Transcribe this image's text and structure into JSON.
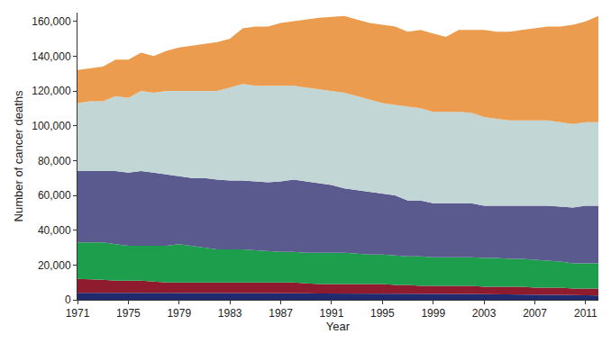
{
  "chart_data": {
    "type": "area",
    "stacked": true,
    "grid": false,
    "x_label": "Year",
    "y_label": "Number of cancer deaths",
    "x": [
      1971,
      1972,
      1973,
      1974,
      1975,
      1976,
      1977,
      1978,
      1979,
      1980,
      1981,
      1982,
      1983,
      1984,
      1985,
      1986,
      1987,
      1988,
      1989,
      1990,
      1991,
      1992,
      1993,
      1994,
      1995,
      1996,
      1997,
      1998,
      1999,
      2000,
      2001,
      2002,
      2003,
      2004,
      2005,
      2006,
      2007,
      2008,
      2009,
      2010,
      2011,
      2012
    ],
    "xlim": [
      1971,
      2012
    ],
    "xticks": [
      1971,
      1975,
      1979,
      1983,
      1987,
      1991,
      1995,
      1999,
      2003,
      2007,
      2011
    ],
    "ylim": [
      0,
      165000
    ],
    "yticks": [
      0,
      {
        "value": 20000,
        "label": "20,000"
      },
      {
        "value": 40000,
        "label": "40,000"
      },
      {
        "value": 60000,
        "label": "60,000"
      },
      {
        "value": 80000,
        "label": "80,000"
      },
      {
        "value": 100000,
        "label": "100,000"
      },
      {
        "value": 120000,
        "label": "120,000"
      },
      {
        "value": 140000,
        "label": "140,000"
      },
      {
        "value": 160000,
        "label": "160,000"
      }
    ],
    "series": [
      {
        "color": "#1f2b6e",
        "values": [
          4000,
          4000,
          4000,
          4000,
          4000,
          4000,
          4000,
          4000,
          4000,
          4000,
          4000,
          4000,
          3800,
          3800,
          3800,
          3800,
          3800,
          3800,
          3800,
          3600,
          3600,
          3600,
          3600,
          3600,
          3500,
          3500,
          3500,
          3400,
          3400,
          3400,
          3300,
          3300,
          3200,
          3200,
          3100,
          3000,
          3000,
          2900,
          2800,
          2700,
          2600,
          2500
        ]
      },
      {
        "color": "#8e1c2e",
        "values": [
          8000,
          7800,
          7500,
          7000,
          7000,
          7000,
          6500,
          6000,
          6000,
          6000,
          6000,
          6000,
          6200,
          6200,
          6200,
          6200,
          6200,
          6200,
          5700,
          5400,
          5400,
          5400,
          5400,
          5400,
          5500,
          5000,
          5000,
          4600,
          4600,
          4600,
          4700,
          4700,
          4300,
          4300,
          4400,
          4500,
          4000,
          4100,
          4200,
          3800,
          3900,
          4000
        ]
      },
      {
        "color": "#1d9e4c",
        "values": [
          21000,
          21200,
          21500,
          21000,
          20000,
          20000,
          20500,
          21000,
          22000,
          21000,
          20000,
          19000,
          19000,
          19000,
          18500,
          18000,
          17500,
          17500,
          17500,
          18000,
          18000,
          18000,
          17500,
          17000,
          17000,
          17000,
          16500,
          17000,
          16500,
          16500,
          16500,
          16500,
          16500,
          16500,
          16000,
          16000,
          16000,
          15500,
          15000,
          14500,
          14500,
          14500
        ]
      },
      {
        "color": "#5b5a8e",
        "values": [
          41000,
          41000,
          41000,
          42000,
          42000,
          43000,
          42000,
          41000,
          39000,
          39000,
          40000,
          40000,
          39500,
          39500,
          39500,
          39500,
          40500,
          41500,
          41000,
          40000,
          39000,
          37000,
          36500,
          36000,
          35000,
          34500,
          32000,
          32000,
          31000,
          31000,
          31000,
          31000,
          30000,
          30000,
          30500,
          30500,
          31000,
          31500,
          31500,
          32000,
          33000,
          33000
        ]
      },
      {
        "color": "#c3d6d6",
        "values": [
          39000,
          40000,
          40000,
          43000,
          43000,
          46000,
          46000,
          48000,
          49000,
          50000,
          50000,
          51000,
          53500,
          55500,
          55000,
          55500,
          55000,
          54000,
          54000,
          54000,
          54000,
          55000,
          54000,
          53000,
          52000,
          52000,
          54000,
          53000,
          52500,
          52500,
          52500,
          52000,
          51000,
          50000,
          49000,
          49000,
          49000,
          49000,
          48500,
          48000,
          48000,
          48000
        ]
      },
      {
        "color": "#eb9c4f",
        "values": [
          19000,
          19000,
          20000,
          21000,
          22000,
          22000,
          21000,
          23000,
          25000,
          26000,
          27000,
          28000,
          28000,
          32000,
          34000,
          34000,
          36000,
          37000,
          39000,
          41000,
          42500,
          44000,
          44000,
          44000,
          45000,
          45000,
          43000,
          45000,
          45000,
          43000,
          47000,
          47500,
          50000,
          50000,
          51000,
          52000,
          53000,
          54000,
          55000,
          57000,
          58000,
          61000
        ]
      }
    ]
  }
}
